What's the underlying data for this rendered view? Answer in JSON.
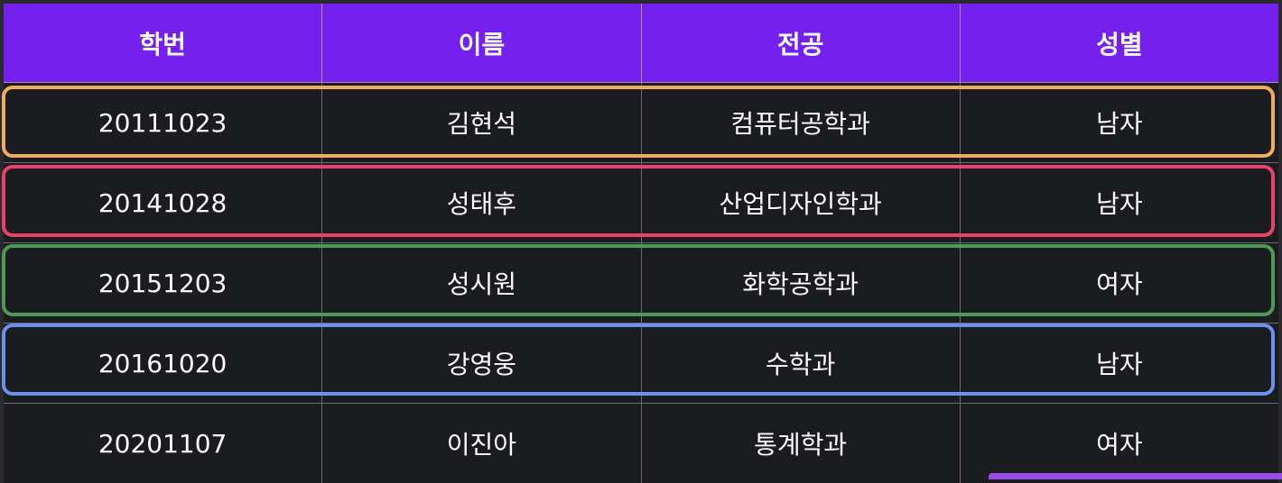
{
  "table": {
    "columns": [
      "학번",
      "이름",
      "전공",
      "성별"
    ],
    "rows": [
      {
        "id": "20111023",
        "name": "김현석",
        "major": "컴퓨터공학과",
        "gender": "남자",
        "highlight": "#f0ad5a"
      },
      {
        "id": "20141028",
        "name": "성태후",
        "major": "산업디자인학과",
        "gender": "남자",
        "highlight": "#e8426a"
      },
      {
        "id": "20151203",
        "name": "성시원",
        "major": "화학공학과",
        "gender": "여자",
        "highlight": "#4e9a55"
      },
      {
        "id": "20161020",
        "name": "강영웅",
        "major": "수학과",
        "gender": "남자",
        "highlight": "#6e8ff0"
      },
      {
        "id": "20201107",
        "name": "이진아",
        "major": "통계학과",
        "gender": "여자",
        "highlight": null
      }
    ]
  },
  "colors": {
    "header_bg": "#7520ee",
    "row_bg": "#1b1c1f",
    "accent_tab": "#9b4ce8"
  }
}
